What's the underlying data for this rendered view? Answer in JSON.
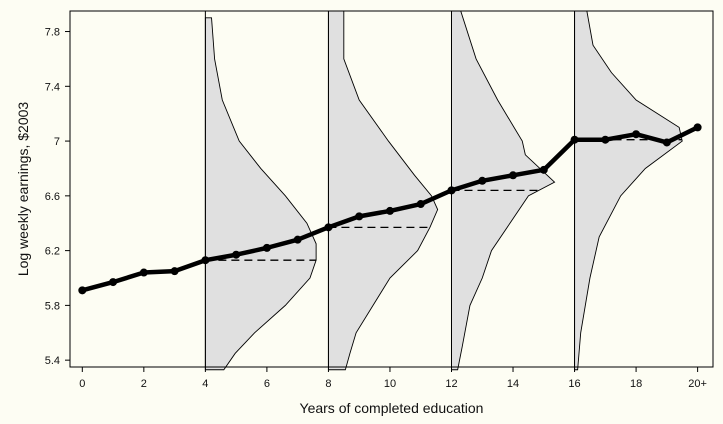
{
  "chart_data": {
    "type": "line",
    "title": "",
    "xlabel": "Years of completed education",
    "ylabel": "Log weekly earnings, $2003",
    "xlim": [
      -0.4,
      20.5
    ],
    "ylim": [
      5.35,
      7.95
    ],
    "xticks": [
      0,
      2,
      4,
      6,
      8,
      10,
      12,
      14,
      16,
      18,
      20
    ],
    "xtick_labels": [
      "0",
      "2",
      "4",
      "6",
      "8",
      "10",
      "12",
      "14",
      "16",
      "18",
      "20+"
    ],
    "yticks": [
      5.4,
      5.8,
      6.2,
      6.6,
      7.0,
      7.4,
      7.8
    ],
    "ytick_labels": [
      "5.4",
      "5.8",
      "6.2",
      "6.6",
      "7",
      "7.4",
      "7.8"
    ],
    "series": [
      {
        "name": "",
        "x": [
          0,
          1,
          2,
          3,
          4,
          5,
          6,
          7,
          8,
          9,
          10,
          11,
          12,
          13,
          14,
          15,
          16,
          17,
          18,
          19,
          20
        ],
        "y": [
          5.91,
          5.97,
          6.04,
          6.05,
          6.13,
          6.17,
          6.22,
          6.28,
          6.37,
          6.45,
          6.49,
          6.54,
          6.64,
          6.71,
          6.75,
          6.79,
          7.01,
          7.01,
          7.05,
          6.99,
          7.1
        ]
      }
    ],
    "distributions": [
      {
        "x": 4,
        "mean": 6.13,
        "widths": [
          [
            5.33,
            0.6
          ],
          [
            5.45,
            0.97
          ],
          [
            5.6,
            1.6
          ],
          [
            5.8,
            2.6
          ],
          [
            6.0,
            3.4
          ],
          [
            6.13,
            3.6
          ],
          [
            6.25,
            3.6
          ],
          [
            6.4,
            3.3
          ],
          [
            6.6,
            2.6
          ],
          [
            6.8,
            1.8
          ],
          [
            7.0,
            1.1
          ],
          [
            7.3,
            0.55
          ],
          [
            7.6,
            0.3
          ],
          [
            7.9,
            0.2
          ]
        ]
      },
      {
        "x": 8,
        "mean": 6.37,
        "widths": [
          [
            5.33,
            0.55
          ],
          [
            5.45,
            0.7
          ],
          [
            5.6,
            0.9
          ],
          [
            5.8,
            1.45
          ],
          [
            6.0,
            2.0
          ],
          [
            6.2,
            2.9
          ],
          [
            6.37,
            3.3
          ],
          [
            6.5,
            3.55
          ],
          [
            6.6,
            3.35
          ],
          [
            6.75,
            2.8
          ],
          [
            7.0,
            1.95
          ],
          [
            7.3,
            1.0
          ],
          [
            7.6,
            0.5
          ],
          [
            7.95,
            0.5
          ]
        ]
      },
      {
        "x": 12,
        "mean": 6.64,
        "widths": [
          [
            5.33,
            0.2
          ],
          [
            5.5,
            0.35
          ],
          [
            5.8,
            0.6
          ],
          [
            6.0,
            1.0
          ],
          [
            6.2,
            1.3
          ],
          [
            6.4,
            1.9
          ],
          [
            6.6,
            2.5
          ],
          [
            6.7,
            3.35
          ],
          [
            6.9,
            2.4
          ],
          [
            7.0,
            2.3
          ],
          [
            7.3,
            1.5
          ],
          [
            7.6,
            0.8
          ],
          [
            7.95,
            0.3
          ]
        ]
      },
      {
        "x": 16,
        "mean": 7.01,
        "widths": [
          [
            5.33,
            0.1
          ],
          [
            5.6,
            0.2
          ],
          [
            6.0,
            0.5
          ],
          [
            6.3,
            0.8
          ],
          [
            6.6,
            1.5
          ],
          [
            6.8,
            2.3
          ],
          [
            7.0,
            3.5
          ],
          [
            7.1,
            3.4
          ],
          [
            7.3,
            2.0
          ],
          [
            7.5,
            1.2
          ],
          [
            7.7,
            0.6
          ],
          [
            7.95,
            0.4
          ]
        ]
      }
    ],
    "colors": {
      "line": "#000000",
      "distribution_fill": "#e0e0e0",
      "background": "#fdfdf3"
    },
    "grid": false,
    "legend": "none"
  }
}
